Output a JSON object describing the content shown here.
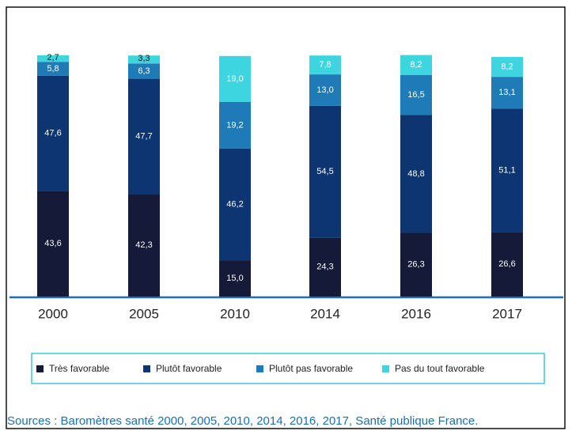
{
  "chart_data": {
    "type": "stacked-bar",
    "categories": [
      "2000",
      "2005",
      "2010",
      "2014",
      "2016",
      "2017"
    ],
    "ylim": [
      0,
      100
    ],
    "series": [
      {
        "name": "Très favorable",
        "color": "#141a38",
        "values": [
          43.6,
          42.3,
          15.0,
          24.3,
          26.3,
          26.6
        ],
        "value_labels": [
          "43,6",
          "42,3",
          "15,0",
          "24,3",
          "26,3",
          "26,6"
        ]
      },
      {
        "name": "Plutôt favorable",
        "color": "#0d3572",
        "values": [
          47.6,
          47.7,
          46.2,
          54.5,
          48.8,
          51.1
        ],
        "value_labels": [
          "47,6",
          "47,7",
          "46,2",
          "54,5",
          "48,8",
          "51,1"
        ]
      },
      {
        "name": "Plutôt pas favorable",
        "color": "#1f7ab8",
        "values": [
          5.8,
          6.3,
          19.2,
          13.0,
          16.5,
          13.1
        ],
        "value_labels": [
          "5,8",
          "6,3",
          "19,2",
          "13,0",
          "16,5",
          "13,1"
        ]
      },
      {
        "name": "Pas du tout favorable",
        "color": "#3dd5df",
        "values": [
          2.7,
          3.3,
          19.0,
          7.8,
          8.2,
          8.2
        ],
        "value_labels": [
          "2,7",
          "3,3",
          "19,0",
          "7,8",
          "8,2",
          "8,2"
        ]
      }
    ],
    "source": "Sources : Baromètres santé 2000, 2005, 2010, 2014, 2016, 2017, Santé publique France."
  }
}
